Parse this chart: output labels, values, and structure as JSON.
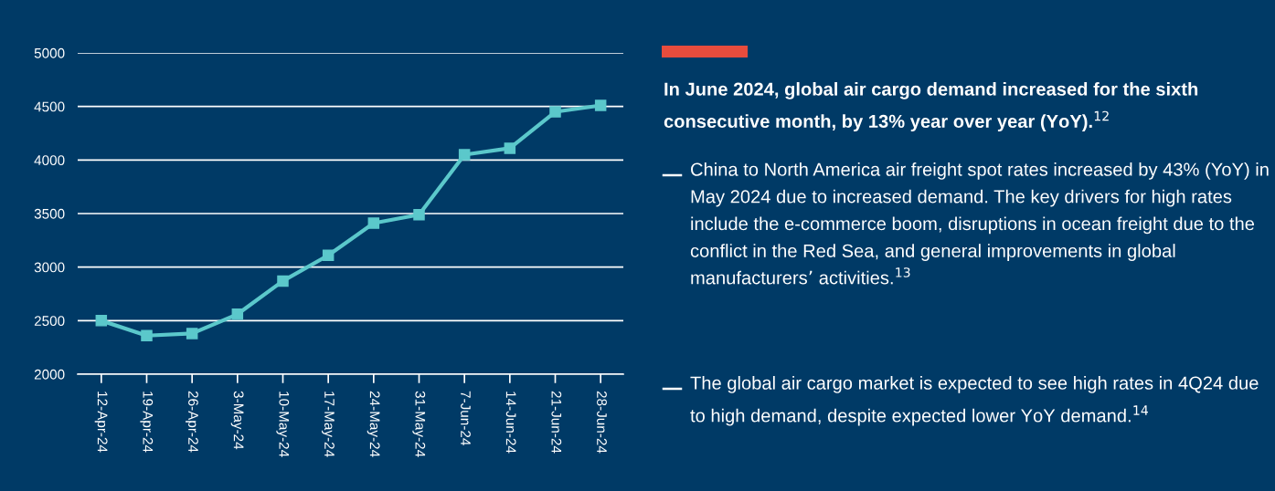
{
  "chart_data": {
    "type": "line",
    "title": "In June 2024, global air cargo demand increased for the sixth consecutive month, by 13% year over year (YoY).$^{12}$",
    "categories": [
      "12-Apr-24",
      "19-Apr-24",
      "26-Apr-24",
      "3-May-24",
      "10-May-24",
      "17-May-24",
      "24-May-24",
      "31-May-24",
      "7-Jun-24",
      "14-Jun-24",
      "21-Jun-24",
      "28-Jun-24"
    ],
    "series": [
      {
        "color": "#5bc8cb",
        "values": [
          2500,
          2360,
          2380,
          2560,
          2870,
          3110,
          3410,
          3490,
          4050,
          4110,
          4450,
          4510
        ]
      }
    ],
    "ylim": [
      2000,
      5000
    ],
    "yticks": [
      2000,
      2500,
      3000,
      3500,
      4000,
      4500,
      5000
    ],
    "grid": "y",
    "marker": "square",
    "line_style": "solid",
    "legend": false,
    "annotations": [
      "China to North America air freight spot rates increased by 43% (YoY) in May 2024 due to increased demand. The key drivers for high rates include the e-commerce boom, disruptions in ocean freight due to the conflict in the Red Sea, and general improvements in global manufacturers’ activities.$^{13}$",
      "The global air cargo market is expected to see high rates in 4Q24 due to high demand, despite expected lower YoY demand.$^{14}$"
    ]
  }
}
